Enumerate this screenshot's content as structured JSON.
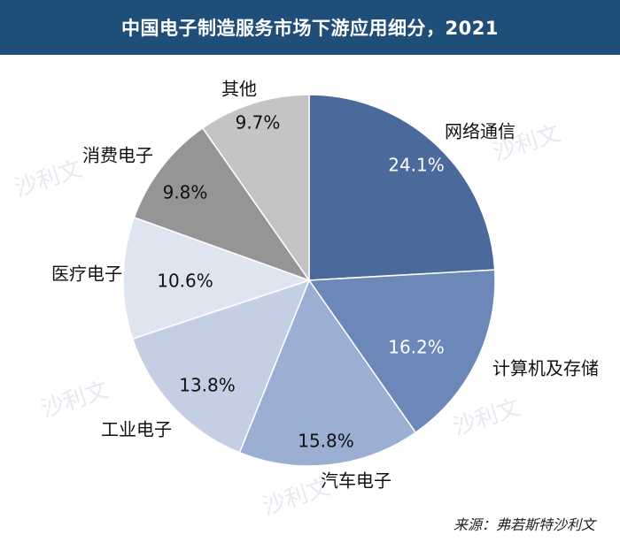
{
  "header": {
    "title": "中国电子制造服务市场下游应用细分，2021"
  },
  "chart_data": {
    "type": "pie",
    "unit": "%",
    "slices": [
      {
        "label": "网络通信",
        "value": 24.1,
        "display": "24.1%",
        "color": "#4a6a9b",
        "pct_color": "#ffffff"
      },
      {
        "label": "计算机及存储",
        "value": 16.2,
        "display": "16.2%",
        "color": "#6b88b8",
        "pct_color": "#ffffff"
      },
      {
        "label": "汽车电子",
        "value": 15.8,
        "display": "15.8%",
        "color": "#9bafd2",
        "pct_color": "#111111"
      },
      {
        "label": "工业电子",
        "value": 13.8,
        "display": "13.8%",
        "color": "#c4cfe3",
        "pct_color": "#111111"
      },
      {
        "label": "医疗电子",
        "value": 10.6,
        "display": "10.6%",
        "color": "#dfe5f0",
        "pct_color": "#111111"
      },
      {
        "label": "消费电子",
        "value": 9.8,
        "display": "9.8%",
        "color": "#959595",
        "pct_color": "#111111"
      },
      {
        "label": "其他",
        "value": 9.7,
        "display": "9.7%",
        "color": "#c4c4c4",
        "pct_color": "#111111"
      }
    ]
  },
  "watermark": {
    "text": "沙利文"
  },
  "source": {
    "text": "来源：弗若斯特沙利文"
  }
}
